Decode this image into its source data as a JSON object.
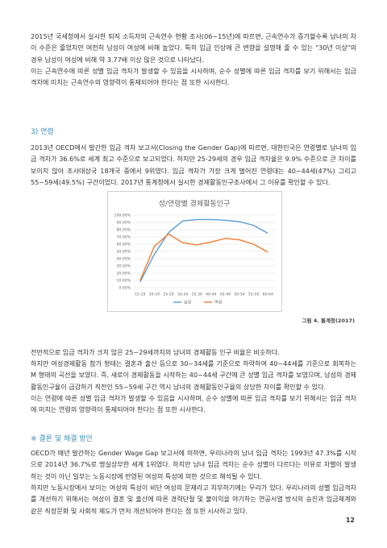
{
  "intro": [
    "2015년 국세청에서 실시한 퇴직 소득자의 근속연수 현황 조사(06~15년)에 따르면, 근속연수가 증가할수록 남녀의 차이 수준은 줄었지만 여전히 남성이 여성에 비해 높았다. 특히 임금 인상에 큰 변향을 설명해 줄 수 있는 \"30년 이상\"의 경우 남성이 여성에 비해 약 3.77배 이상 많은 것으로 나타났다.",
    "이는 근속연수에 따른 성별 임금 격차가 발생할 수 있음을 시사하며, 순수 성별에 따른 임금 격차를 보기 위해서는 임금 격차에 미치는 근속연수의 영향력이 통제되어야 한다는 점 또한 시사한다."
  ],
  "age_section": {
    "heading": "3) 연령",
    "paragraphs": [
      "2013년 OECD에서 발간한 임금 격차 보고서(Closing the Gender Gap)에 따르면, 대한민국은 연령별로 남녀의 임금 격차가 36.6%로 세계 최고 수준으로 보고되었다. 하지만 25-29세의 경우 임금 격차율은 9.9% 수준으로 큰 차이를 보이지 않아 조사대상국 18개국 중에서 9위였다. 임금 격차가 가장 크게 벌어진 연령대는 40~44세(47%) 그리고 55~59세(49.5%) 구간이었다. 2017년 통계청에서 실시한 경제활동인구조사에서 그 이유를 확인할 수 있다."
    ]
  },
  "chart_data": {
    "type": "line",
    "title": "성/연령별 경제활동인구",
    "categories": [
      "15-19",
      "20-24",
      "25-29",
      "30-34",
      "35-39",
      "40-44",
      "45-49",
      "50-54",
      "55-59",
      "60-64"
    ],
    "series": [
      {
        "name": "남성",
        "color": "#5b9bd5",
        "values": [
          8,
          46,
          76,
          92,
          94,
          94,
          93,
          91,
          86,
          75
        ]
      },
      {
        "name": "여성",
        "color": "#ed7d31",
        "values": [
          10,
          57,
          74,
          62,
          59,
          63,
          68,
          66,
          60,
          49
        ]
      }
    ],
    "ylim": [
      0,
      100
    ],
    "yticks": [
      {
        "value": 0,
        "label": "0.00%"
      },
      {
        "value": 10,
        "label": "10.00%"
      },
      {
        "value": 20,
        "label": "20.00%"
      },
      {
        "value": 30,
        "label": "30.00%"
      },
      {
        "value": 40,
        "label": "40.00%"
      },
      {
        "value": 50,
        "label": "50.00%"
      },
      {
        "value": 60,
        "label": "60.00%"
      },
      {
        "value": 70,
        "label": "70.00%"
      },
      {
        "value": 80,
        "label": "80.00%"
      },
      {
        "value": 90,
        "label": "90.00%"
      },
      {
        "value": 100,
        "label": "100.00%"
      }
    ],
    "grid": true,
    "legend": "bottom"
  },
  "figure_caption": "그림 4. 통계청(2017)",
  "analysis": [
    "전반적으로 임금 격차가 크지 않은 25~29세까지의 남녀의 경제활동 인구 비율은 비슷하다.",
    "하지만 여성경제활동 참가 형태는 결혼과 출산 등으로 30~34세를 기준으로 하락하여 40~44세를 기준으로 회복하는 M 형태의 곡선을 보였다. 즉, 새로이 경제활동을 시작하는 40~44세 구간에 큰 성별 임금 격차를 보였으며, 남성의 경제활동인구율이 급감하기 직전인 55~59세 구간 역시 남녀의 경제활동인구율의 상당한 차이를 확인할 수 있다.",
    "이는 연령에 따른 성별 임금 격차가 발생할 수 있음을 시사하며, 순수 성별에 따른 임금 격차를 보기 위해서는 임금 격차에 미치는 연령의 영향력이 통제되어야 한다는 점 또한 시사한다."
  ],
  "conclusion": {
    "heading": "※ 결론 및 해결 방안",
    "paragraphs": [
      "OECD가 매년 발간하는 Gender Wage Gap 보고서에 의하면, 우리나라의 남녀 임금 격차는 1993년 47.3%를 시작으로 2014년 36.7%로 명실상부한 세계 1위였다. 하지만 남녀 임금 격차는 순수 성별이 다르다는 이유로 차별이 발생하는 것이 아닌 일부는 노동시장에 반영된 여성의 특성에 의한 것으로 해석될 수 있다.",
      "하지만 노동시장에서 보이는 여성의 특성이 비단 여성의 문제라고 치부하기에는 무리가 있다. 우리나라의 성별 임금격차를 개선하기 위해서는 여성이 결혼 및 출산에 따른 경력단절 및 불이익을 야기하는 연공서열 방식의 승진과 임금체계와 같은 직장문화 및 사회적 제도가 먼저 개선되어야 한다는 점 또한 시사하고 있다."
    ]
  },
  "page_number": "12"
}
